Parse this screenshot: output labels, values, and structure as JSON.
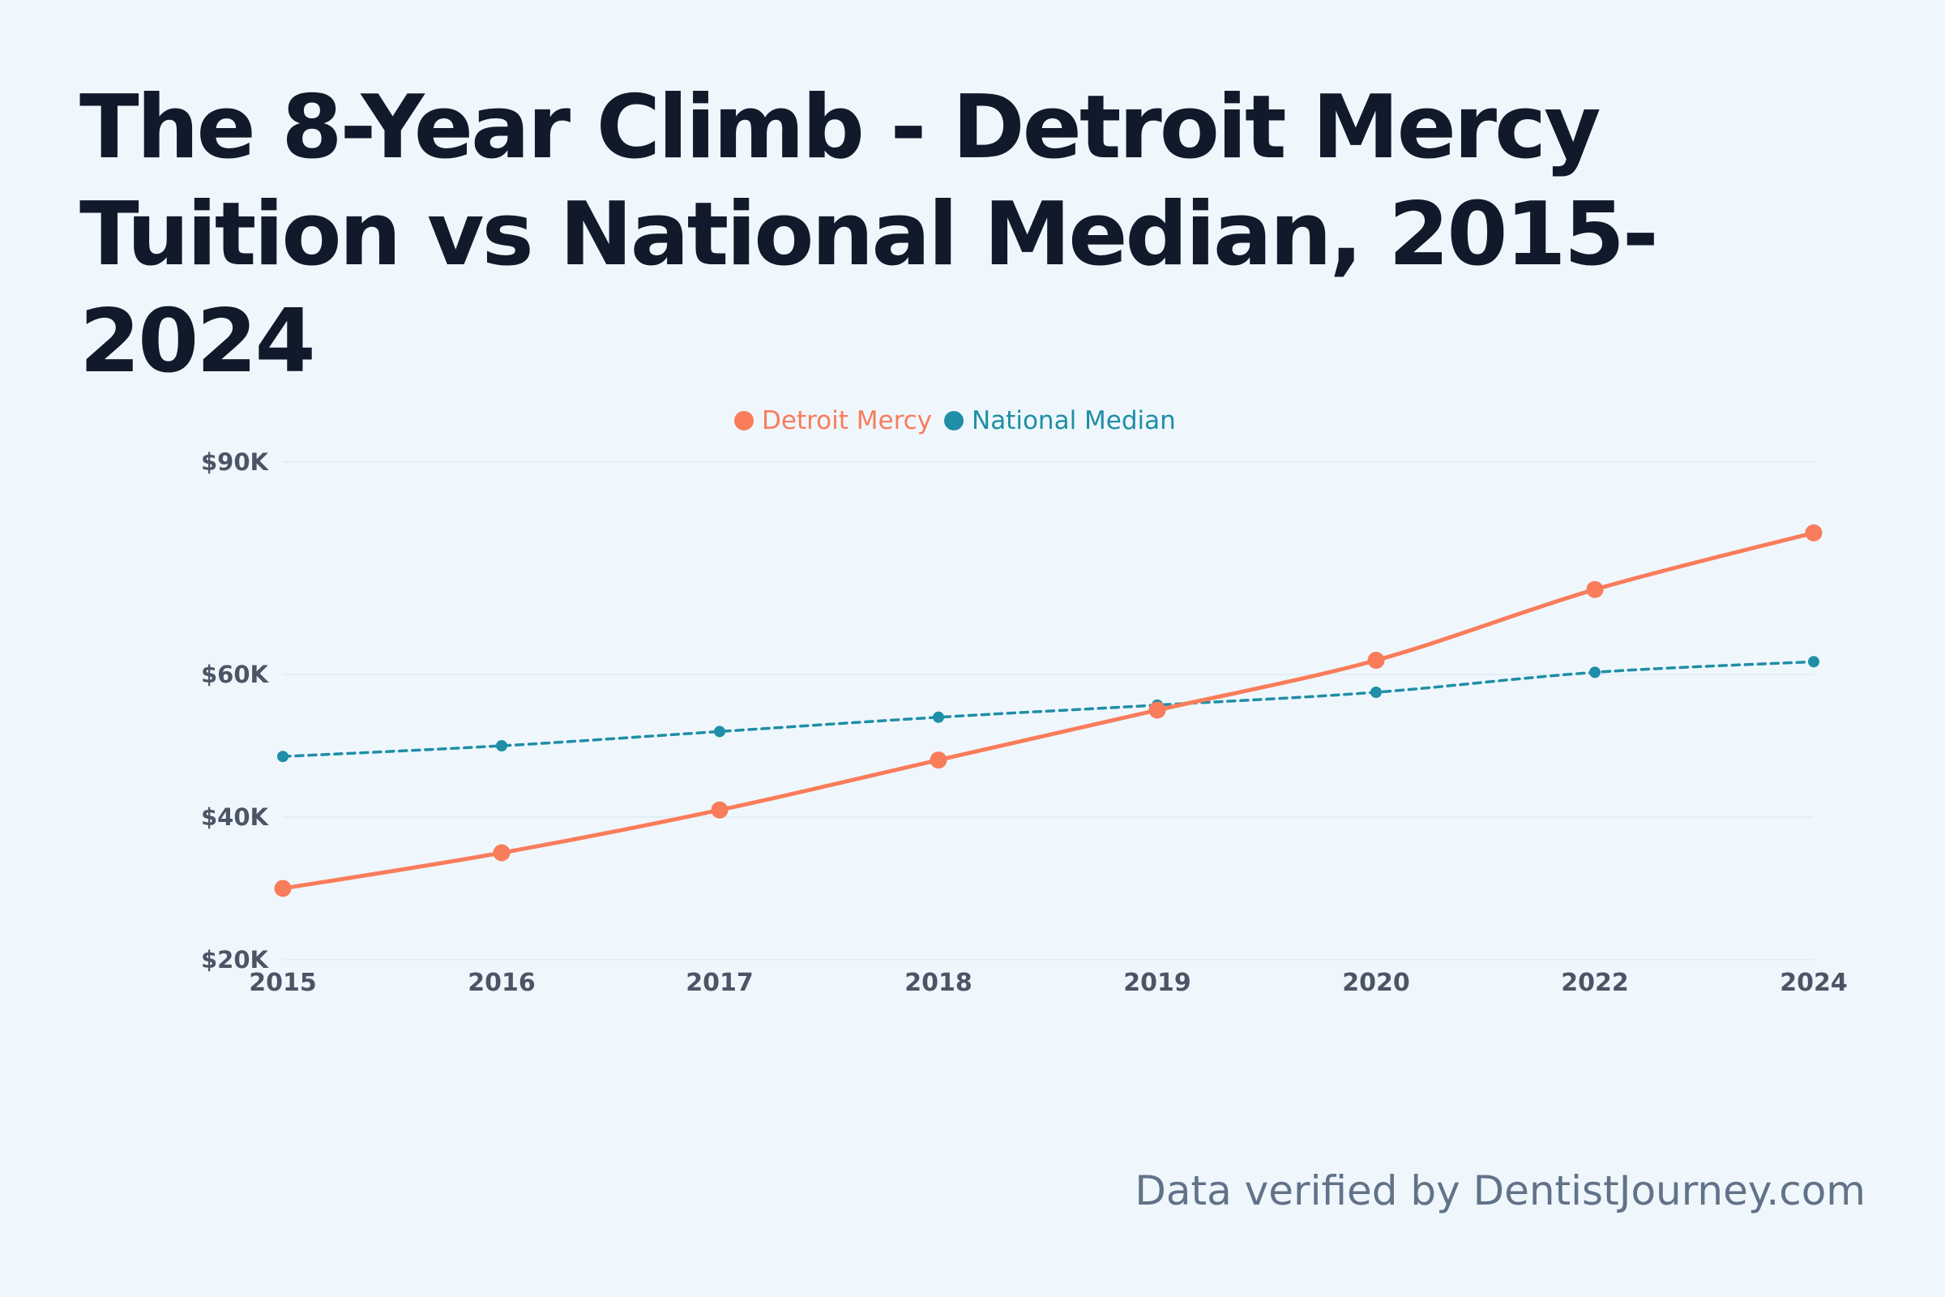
{
  "title": "The 8-Year Climb - Detroit Mercy Tuition vs National Median, 2015-2024",
  "footer": "Data verified by DentistJourney.com",
  "colors": {
    "background": "#eff7fd",
    "title": "#111a2b",
    "detroit": "#f97c5b",
    "national": "#1f8ea6",
    "tick": "#4b5565",
    "grid": "#e3eef5",
    "footer": "#627288"
  },
  "chart_data": {
    "type": "line",
    "title": "The 8-Year Climb - Detroit Mercy Tuition vs National Median, 2015-2024",
    "x": [
      "2015",
      "2016",
      "2017",
      "2018",
      "2019",
      "2020",
      "2022",
      "2024"
    ],
    "y_ticks": [
      {
        "value": 20000,
        "label": "$20K"
      },
      {
        "value": 40000,
        "label": "$40K"
      },
      {
        "value": 60000,
        "label": "$60K"
      },
      {
        "value": 90000,
        "label": "$90K"
      }
    ],
    "ylim": [
      20000,
      90000
    ],
    "legend_position": "top-center",
    "grid": true,
    "series": [
      {
        "name": "Detroit Mercy",
        "color": "#f97c5b",
        "style": "solid",
        "values": [
          30000,
          35000,
          41000,
          48000,
          55000,
          62000,
          72000,
          80000
        ]
      },
      {
        "name": "National Median",
        "color": "#1f8ea6",
        "style": "dashed",
        "values": [
          48500,
          50000,
          52000,
          54000,
          55700,
          57500,
          60300,
          61800
        ]
      }
    ]
  }
}
